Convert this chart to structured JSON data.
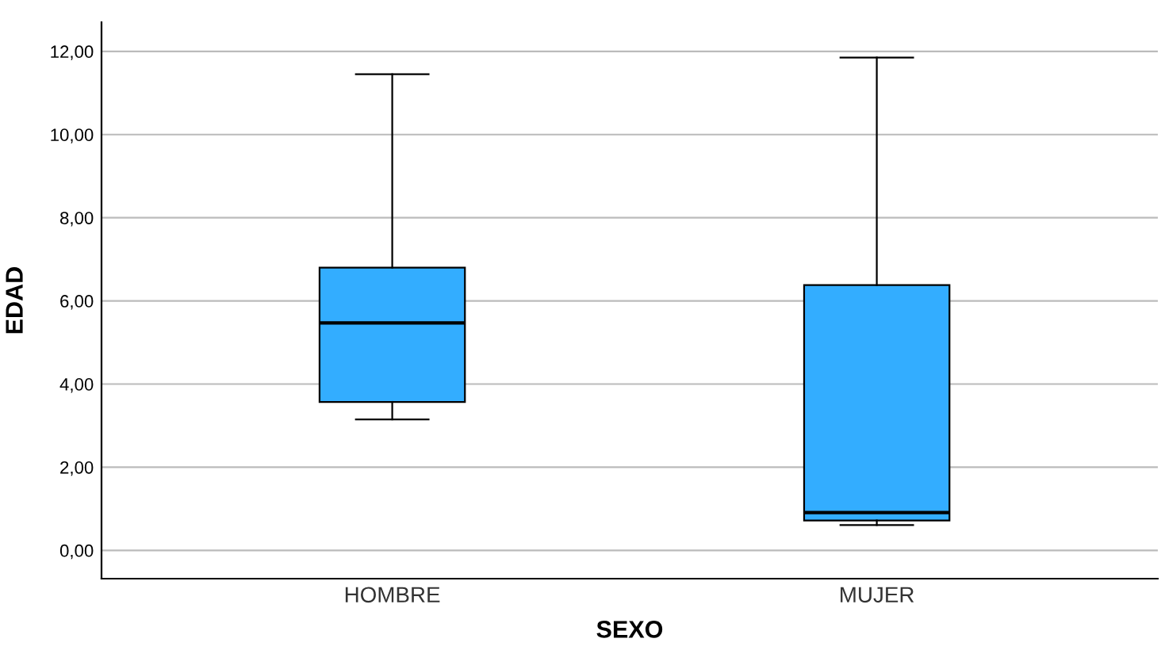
{
  "chart_data": {
    "type": "box",
    "xlabel": "SEXO",
    "ylabel": "EDAD",
    "categories": [
      "HOMBRE",
      "MUJER"
    ],
    "boxes": [
      {
        "low": 3.15,
        "q1": 3.57,
        "median": 5.47,
        "q3": 6.8,
        "high": 11.45
      },
      {
        "low": 0.61,
        "q1": 0.72,
        "median": 0.91,
        "q3": 6.38,
        "high": 11.85
      }
    ],
    "color": "#33adff",
    "ylim": [
      -0.68,
      12.7
    ],
    "yticks": [
      {
        "value": 0,
        "label": "0,00"
      },
      {
        "value": 2,
        "label": "2,00"
      },
      {
        "value": 4,
        "label": "4,00"
      },
      {
        "value": 6,
        "label": "6,00"
      },
      {
        "value": 8,
        "label": "8,00"
      },
      {
        "value": 10,
        "label": "10,00"
      },
      {
        "value": 12,
        "label": "12,00"
      }
    ],
    "grid": "y"
  }
}
